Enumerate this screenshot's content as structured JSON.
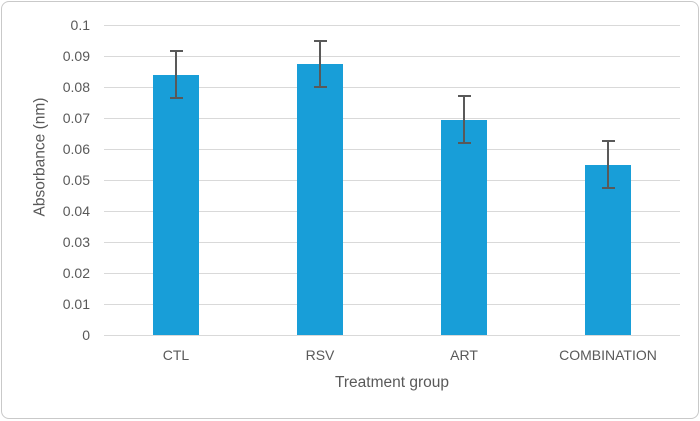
{
  "chart_data": {
    "type": "bar",
    "title": "",
    "categories": [
      "CTL",
      "RSV",
      "ART",
      "COMBINATION"
    ],
    "values": [
      0.084,
      0.0875,
      0.0695,
      0.055
    ],
    "errors": [
      0.0075,
      0.0075,
      0.0075,
      0.0075
    ],
    "xlabel": "Treatment group",
    "ylabel": "Absorbance (nm)",
    "ylim": [
      0,
      0.1
    ],
    "ytick_step": 0.01,
    "ytick_labels": [
      "0",
      "0.01",
      "0.02",
      "0.03",
      "0.04",
      "0.05",
      "0.06",
      "0.07",
      "0.08",
      "0.09",
      "0.1"
    ],
    "grid": true,
    "legend": false,
    "colors": {
      "bar": "#189ed8",
      "error_bar": "#595959",
      "gridline": "#d9d9d9",
      "text": "#595959",
      "frame_border": "#c9c9c9"
    }
  }
}
